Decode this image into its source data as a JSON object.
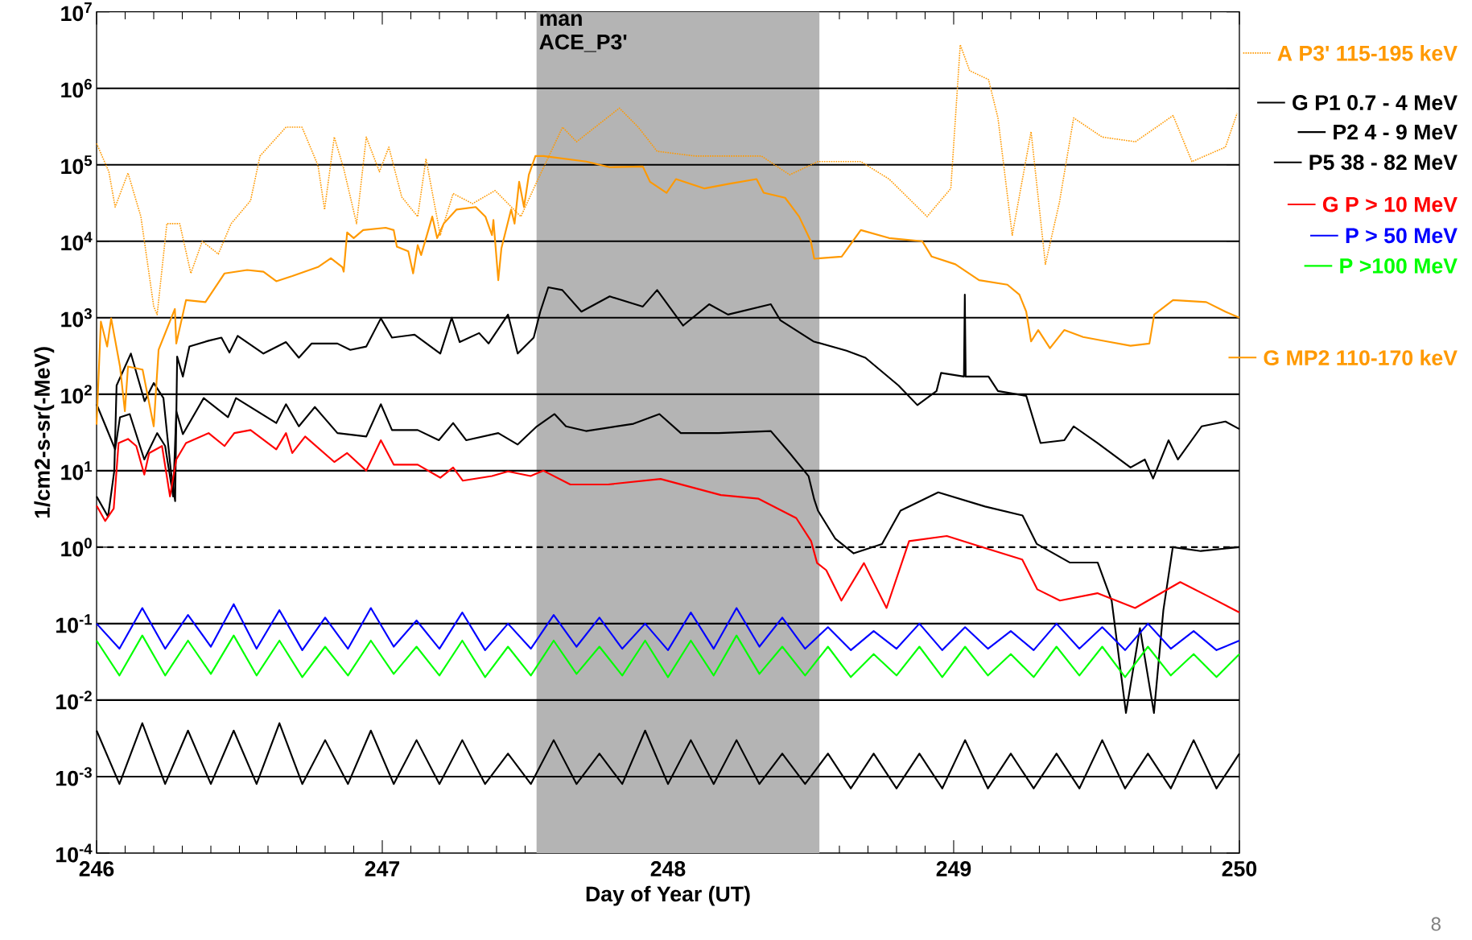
{
  "chart_data": {
    "type": "line",
    "xlabel": "Day of Year (UT)",
    "ylabel": "1/cm2-s-sr(-MeV)",
    "annotations": [
      "8"
    ],
    "xlim": [
      246,
      250
    ],
    "ylim": [
      0.0001,
      10000000
    ],
    "xticks": [
      246,
      247,
      248,
      249,
      250
    ],
    "yticks": [
      {
        "value": 0.0001,
        "label": "10$^{-4}$"
      },
      {
        "value": 0.001,
        "label": "10$^{-3}$"
      },
      {
        "value": 0.01,
        "label": "10$^{-2}$"
      },
      {
        "value": 0.1,
        "label": "10$^{-1}$"
      },
      {
        "value": 1,
        "label": "10$^{0}$"
      },
      {
        "value": 10,
        "label": "10$^{1}$"
      },
      {
        "value": 100,
        "label": "10$^{2}$"
      },
      {
        "value": 1000,
        "label": "10$^{3}$"
      },
      {
        "value": 10000,
        "label": "10$^{4}$"
      },
      {
        "value": 100000,
        "label": "10$^{5}$"
      },
      {
        "value": 1000000,
        "label": "10$^{6}$"
      },
      {
        "value": 10000000,
        "label": "10$^{7}$"
      }
    ],
    "log": "y",
    "legend": "right",
    "marker": "none",
    "bands": [
      {
        "axis": "x",
        "from": 247.54,
        "to": 248.53,
        "label": "man ACE_P3'",
        "color": "#b4b4b4"
      }
    ],
    "ref_lines": [
      {
        "axis": "y",
        "value": 1000000,
        "color": "#000000",
        "line_style": "solid"
      },
      {
        "axis": "y",
        "value": 100000,
        "color": "#000000",
        "line_style": "solid"
      },
      {
        "axis": "y",
        "value": 10000,
        "color": "#000000",
        "line_style": "solid"
      },
      {
        "axis": "y",
        "value": 1000,
        "color": "#000000",
        "line_style": "solid"
      },
      {
        "axis": "y",
        "value": 100,
        "color": "#000000",
        "line_style": "solid"
      },
      {
        "axis": "y",
        "value": 10,
        "color": "#000000",
        "line_style": "solid"
      },
      {
        "axis": "y",
        "value": 1,
        "color": "#000000",
        "line_style": "dashed"
      },
      {
        "axis": "y",
        "value": 0.1,
        "color": "#000000",
        "line_style": "solid"
      },
      {
        "axis": "y",
        "value": 0.01,
        "color": "#000000",
        "line_style": "solid"
      },
      {
        "axis": "y",
        "value": 0.001,
        "color": "#000000",
        "line_style": "solid"
      }
    ],
    "series": [
      {
        "name": "A P3' 115-195 keV",
        "color": "#ff9900",
        "line_style": "dotted",
        "x": [
          246.0,
          246.043,
          246.065,
          246.11,
          246.155,
          246.2,
          246.212,
          246.246,
          246.291,
          246.33,
          246.37,
          246.426,
          246.471,
          246.539,
          246.572,
          246.663,
          246.719,
          246.775,
          246.798,
          246.832,
          246.865,
          246.91,
          246.944,
          246.99,
          247.023,
          247.068,
          247.124,
          247.153,
          247.203,
          247.248,
          247.316,
          247.395,
          247.485,
          247.541,
          247.631,
          247.68,
          247.83,
          247.896,
          247.962,
          248.095,
          248.327,
          248.426,
          248.525,
          248.675,
          248.774,
          248.907,
          248.99,
          249.023,
          249.056,
          249.122,
          249.155,
          249.205,
          249.271,
          249.321,
          249.37,
          249.42,
          249.52,
          249.636,
          249.768,
          249.834,
          249.951,
          249.992
        ],
        "values": [
          190000,
          81000,
          28000,
          78000,
          21000,
          1400,
          1100,
          17000,
          17000,
          3800,
          10000,
          6800,
          17000,
          34000,
          130000,
          310000,
          310000,
          98000,
          26000,
          230000,
          89000,
          17000,
          230000,
          81000,
          170000,
          38000,
          21000,
          120000,
          12000,
          42000,
          31000,
          46000,
          21000,
          60000,
          310000,
          200000,
          550000,
          310000,
          150000,
          130000,
          130000,
          74000,
          110000,
          110000,
          65000,
          21000,
          49000,
          3700000,
          1700000,
          1300000,
          410000,
          12000,
          270000,
          5000,
          32000,
          410000,
          230000,
          200000,
          440000,
          110000,
          170000,
          470000
        ]
      },
      {
        "name": "G P1 0.7 -   4 MeV",
        "color": "#000000",
        "line_style": "solid",
        "x": [
          246.0,
          246.04,
          246.062,
          246.07,
          246.12,
          246.168,
          246.2,
          246.234,
          246.26,
          246.275,
          246.282,
          246.302,
          246.325,
          246.392,
          246.437,
          246.465,
          246.494,
          246.584,
          246.663,
          246.708,
          246.753,
          246.843,
          246.888,
          246.944,
          246.995,
          247.034,
          247.113,
          247.203,
          247.243,
          247.271,
          247.339,
          247.372,
          247.44,
          247.474,
          247.53,
          247.553,
          247.581,
          247.63,
          247.697,
          247.796,
          247.912,
          247.962,
          248.053,
          248.144,
          248.21,
          248.36,
          248.393,
          248.509,
          248.625,
          248.691,
          248.807,
          248.873,
          248.94,
          248.956,
          249.036,
          249.039,
          249.042,
          249.122,
          249.155,
          249.254,
          249.304,
          249.387,
          249.42,
          249.503,
          249.619,
          249.669,
          249.698,
          249.752,
          249.785,
          249.868,
          249.951,
          250.0
        ],
        "values": [
          4.6,
          2.5,
          10,
          130,
          340,
          81,
          140,
          89,
          10,
          4.0,
          310,
          170,
          420,
          500,
          550,
          350,
          580,
          340,
          480,
          300,
          460,
          460,
          380,
          420,
          980,
          550,
          600,
          340,
          1000,
          480,
          630,
          460,
          1100,
          340,
          550,
          1200,
          2500,
          2300,
          1200,
          1900,
          1400,
          2300,
          790,
          1500,
          1100,
          1500,
          930,
          490,
          370,
          300,
          130,
          72,
          110,
          190,
          170,
          2000,
          170,
          170,
          110,
          95,
          23,
          25,
          38,
          23,
          11,
          14,
          7.9,
          25,
          14,
          38,
          44,
          35
        ]
      },
      {
        "name": "P2    4 -   9 MeV",
        "color": "#000000",
        "line_style": "solid",
        "x": [
          246.0,
          246.032,
          246.065,
          246.082,
          246.116,
          246.167,
          246.212,
          246.24,
          246.268,
          246.279,
          246.302,
          246.375,
          246.46,
          246.488,
          246.629,
          246.663,
          246.708,
          246.764,
          246.843,
          246.944,
          246.995,
          247.034,
          247.124,
          247.198,
          247.248,
          247.294,
          247.406,
          247.474,
          247.541,
          247.603,
          247.643,
          247.713,
          247.879,
          247.97,
          248.045,
          248.177,
          248.36,
          248.426,
          248.492,
          248.512,
          248.525,
          248.585,
          248.65,
          248.749,
          248.814,
          248.946,
          249.11,
          249.241,
          249.291,
          249.406,
          249.504,
          249.553,
          249.603,
          249.652,
          249.701,
          249.734,
          249.767,
          249.865,
          250.0
        ],
        "values": [
          74,
          38,
          19,
          50,
          55,
          14,
          31,
          21,
          4.6,
          60,
          30,
          89,
          50,
          89,
          42,
          74,
          38,
          68,
          31,
          28,
          74,
          34,
          34,
          25,
          42,
          25,
          31,
          22,
          38,
          55,
          38,
          33,
          41,
          55,
          31,
          31,
          33,
          17,
          8.5,
          4.2,
          3.0,
          1.3,
          0.83,
          1.1,
          3.0,
          5.2,
          3.4,
          2.6,
          1.1,
          0.63,
          0.63,
          0.2,
          0.0068,
          0.087,
          0.0068,
          0.15,
          1.0,
          0.89,
          1.0
        ]
      },
      {
        "name": "P5  38 - 82 MeV",
        "color": "#000000",
        "line_style": "solid",
        "x": [
          246.0,
          246.08,
          246.16,
          246.24,
          246.32,
          246.4,
          246.48,
          246.56,
          246.64,
          246.72,
          246.8,
          246.88,
          246.96,
          247.04,
          247.12,
          247.2,
          247.28,
          247.36,
          247.44,
          247.52,
          247.6,
          247.68,
          247.76,
          247.84,
          247.92,
          248.0,
          248.08,
          248.16,
          248.24,
          248.32,
          248.4,
          248.48,
          248.56,
          248.64,
          248.72,
          248.8,
          248.88,
          248.96,
          249.04,
          249.12,
          249.2,
          249.28,
          249.36,
          249.44,
          249.52,
          249.6,
          249.68,
          249.76,
          249.84,
          249.92,
          250.0
        ],
        "values": [
          0.004,
          0.0008,
          0.005,
          0.0008,
          0.004,
          0.0008,
          0.004,
          0.0008,
          0.005,
          0.0008,
          0.003,
          0.0008,
          0.004,
          0.0008,
          0.003,
          0.0008,
          0.003,
          0.0008,
          0.002,
          0.0008,
          0.003,
          0.0008,
          0.002,
          0.0008,
          0.004,
          0.0008,
          0.003,
          0.0008,
          0.003,
          0.0008,
          0.002,
          0.0008,
          0.002,
          0.0007,
          0.002,
          0.0007,
          0.002,
          0.0007,
          0.003,
          0.0007,
          0.002,
          0.0007,
          0.002,
          0.0007,
          0.003,
          0.0007,
          0.002,
          0.0007,
          0.003,
          0.0007,
          0.002
        ]
      },
      {
        "name": "G P >  10 MeV",
        "color": "#ff0000",
        "line_style": "solid",
        "x": [
          246.0,
          246.03,
          246.06,
          246.077,
          246.11,
          246.139,
          246.167,
          246.184,
          246.229,
          246.257,
          246.279,
          246.313,
          246.392,
          246.448,
          246.482,
          246.539,
          246.629,
          246.663,
          246.685,
          246.73,
          246.832,
          246.877,
          246.944,
          246.995,
          247.04,
          247.124,
          247.203,
          247.248,
          247.282,
          247.384,
          247.44,
          247.519,
          247.564,
          247.658,
          247.79,
          247.974,
          248.185,
          248.317,
          248.449,
          248.501,
          248.522,
          248.554,
          248.607,
          248.686,
          248.765,
          248.844,
          248.976,
          249.108,
          249.24,
          249.293,
          249.372,
          249.503,
          249.635,
          249.793,
          249.899,
          250.0
        ],
        "values": [
          3.5,
          2.2,
          3.2,
          23,
          26,
          21,
          8.9,
          17,
          21,
          4.6,
          14,
          23,
          31,
          21,
          31,
          34,
          19,
          31,
          17,
          28,
          13,
          17,
          10,
          25,
          12,
          12,
          8.1,
          11,
          7.4,
          8.5,
          9.8,
          8.5,
          10,
          6.6,
          6.6,
          7.8,
          4.8,
          4.3,
          2.4,
          1.2,
          0.62,
          0.5,
          0.2,
          0.62,
          0.16,
          1.2,
          1.4,
          0.98,
          0.69,
          0.28,
          0.2,
          0.25,
          0.16,
          0.35,
          0.22,
          0.14
        ]
      },
      {
        "name": "P >  50 MeV",
        "color": "#0000ff",
        "line_style": "solid",
        "x": [
          246.0,
          246.08,
          246.16,
          246.24,
          246.32,
          246.4,
          246.48,
          246.56,
          246.64,
          246.72,
          246.8,
          246.88,
          246.96,
          247.04,
          247.12,
          247.2,
          247.28,
          247.36,
          247.44,
          247.52,
          247.6,
          247.68,
          247.76,
          247.84,
          247.92,
          248.0,
          248.08,
          248.16,
          248.24,
          248.32,
          248.4,
          248.48,
          248.56,
          248.64,
          248.72,
          248.8,
          248.88,
          248.96,
          249.04,
          249.12,
          249.2,
          249.28,
          249.36,
          249.44,
          249.52,
          249.6,
          249.68,
          249.76,
          249.84,
          249.92,
          250.0
        ],
        "values": [
          0.1,
          0.047,
          0.16,
          0.047,
          0.13,
          0.05,
          0.18,
          0.047,
          0.15,
          0.045,
          0.12,
          0.047,
          0.16,
          0.05,
          0.11,
          0.047,
          0.14,
          0.045,
          0.1,
          0.047,
          0.13,
          0.05,
          0.12,
          0.047,
          0.1,
          0.045,
          0.14,
          0.047,
          0.16,
          0.05,
          0.12,
          0.047,
          0.09,
          0.045,
          0.08,
          0.047,
          0.1,
          0.045,
          0.09,
          0.047,
          0.08,
          0.045,
          0.1,
          0.047,
          0.09,
          0.045,
          0.1,
          0.047,
          0.08,
          0.045,
          0.06
        ]
      },
      {
        "name": "P >100 MeV",
        "color": "#00ff00",
        "line_style": "solid",
        "x": [
          246.0,
          246.08,
          246.16,
          246.24,
          246.32,
          246.4,
          246.48,
          246.56,
          246.64,
          246.72,
          246.8,
          246.88,
          246.96,
          247.04,
          247.12,
          247.2,
          247.28,
          247.36,
          247.44,
          247.52,
          247.6,
          247.68,
          247.76,
          247.84,
          247.92,
          248.0,
          248.08,
          248.16,
          248.24,
          248.32,
          248.4,
          248.48,
          248.56,
          248.64,
          248.72,
          248.8,
          248.88,
          248.96,
          249.04,
          249.12,
          249.2,
          249.28,
          249.36,
          249.44,
          249.52,
          249.6,
          249.68,
          249.76,
          249.84,
          249.92,
          250.0
        ],
        "values": [
          0.06,
          0.021,
          0.07,
          0.021,
          0.06,
          0.022,
          0.07,
          0.021,
          0.06,
          0.02,
          0.05,
          0.021,
          0.06,
          0.022,
          0.05,
          0.021,
          0.06,
          0.02,
          0.05,
          0.021,
          0.06,
          0.022,
          0.05,
          0.021,
          0.06,
          0.02,
          0.06,
          0.021,
          0.07,
          0.022,
          0.05,
          0.021,
          0.05,
          0.02,
          0.04,
          0.021,
          0.05,
          0.02,
          0.05,
          0.021,
          0.04,
          0.02,
          0.05,
          0.021,
          0.05,
          0.02,
          0.05,
          0.021,
          0.04,
          0.02,
          0.04
        ]
      },
      {
        "name": "G MP2 110-170 keV",
        "color": "#ff9900",
        "line_style": "solid",
        "x": [
          246.0,
          246.015,
          246.037,
          246.051,
          246.082,
          246.099,
          246.11,
          246.161,
          246.2,
          246.217,
          246.274,
          246.279,
          246.313,
          246.381,
          246.448,
          246.527,
          246.584,
          246.629,
          246.685,
          246.775,
          246.82,
          246.86,
          246.865,
          246.877,
          246.9,
          246.933,
          247.012,
          247.04,
          247.051,
          247.091,
          247.108,
          247.124,
          247.136,
          247.175,
          247.192,
          247.215,
          247.26,
          247.327,
          247.361,
          247.384,
          247.389,
          247.406,
          247.417,
          247.451,
          247.463,
          247.479,
          247.496,
          247.513,
          247.536,
          247.564,
          247.714,
          247.796,
          247.912,
          247.937,
          247.995,
          248.028,
          248.128,
          248.21,
          248.31,
          248.335,
          248.41,
          248.459,
          248.5,
          248.512,
          248.608,
          248.675,
          248.774,
          248.89,
          248.923,
          249.006,
          249.089,
          249.188,
          249.23,
          249.254,
          249.271,
          249.296,
          249.337,
          249.387,
          249.453,
          249.536,
          249.619,
          249.685,
          249.702,
          249.768,
          249.884,
          249.951,
          250.0
        ],
        "values": [
          40,
          890,
          420,
          980,
          230,
          60,
          230,
          210,
          38,
          380,
          1300,
          460,
          1700,
          1600,
          3800,
          4200,
          4000,
          3000,
          3500,
          4600,
          6000,
          4600,
          4000,
          13000,
          11000,
          14000,
          15000,
          14000,
          8500,
          7400,
          3800,
          8900,
          6600,
          21000,
          11000,
          17000,
          26000,
          28000,
          21000,
          12000,
          19000,
          3100,
          8100,
          26000,
          17000,
          60000,
          28000,
          74000,
          130000,
          130000,
          110000,
          93000,
          95000,
          60000,
          43000,
          65000,
          49000,
          56000,
          65000,
          43000,
          37000,
          21000,
          10000,
          5900,
          6300,
          14000,
          11000,
          10000,
          6300,
          5000,
          3100,
          2700,
          2000,
          1200,
          490,
          690,
          400,
          690,
          560,
          490,
          430,
          460,
          1100,
          1700,
          1600,
          1200,
          1000
        ]
      }
    ]
  }
}
